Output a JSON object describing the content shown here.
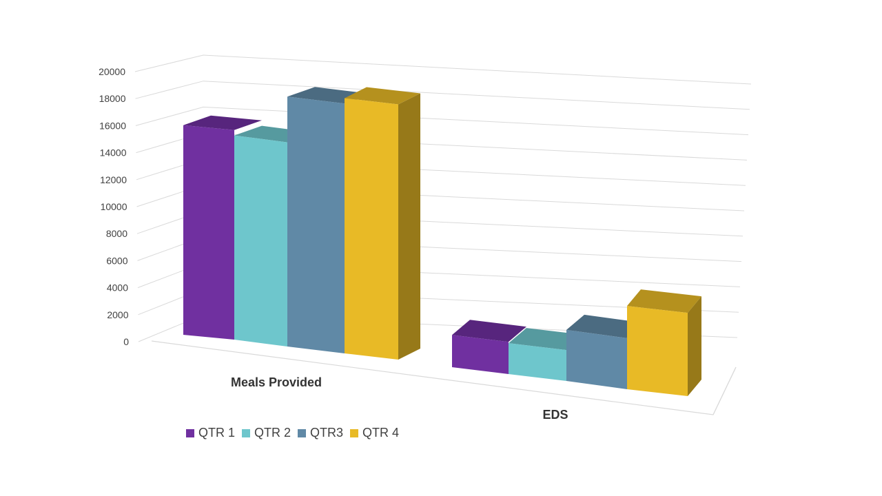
{
  "chart_data": {
    "type": "bar",
    "title": "",
    "xlabel": "",
    "ylabel": "",
    "categories": [
      "Meals Provided",
      "EDS"
    ],
    "series": [
      {
        "name": "QTR 1",
        "color": "#7030A0",
        "values": [
          15600,
          2400
        ]
      },
      {
        "name": "QTR 2",
        "color": "#6EC6CC",
        "values": [
          15200,
          2300
        ]
      },
      {
        "name": "QTR3",
        "color": "#6089A6",
        "values": [
          18600,
          3800
        ]
      },
      {
        "name": "QTR 4",
        "color": "#E8BA26",
        "values": [
          19000,
          6200
        ]
      }
    ],
    "ylim": [
      0,
      20000
    ],
    "yticks": [
      "0",
      "2000",
      "4000",
      "6000",
      "8000",
      "10000",
      "12000",
      "14000",
      "16000",
      "18000",
      "20000"
    ],
    "grid": true,
    "legend_position": "bottom-left",
    "style": "3d-clustered-column"
  }
}
